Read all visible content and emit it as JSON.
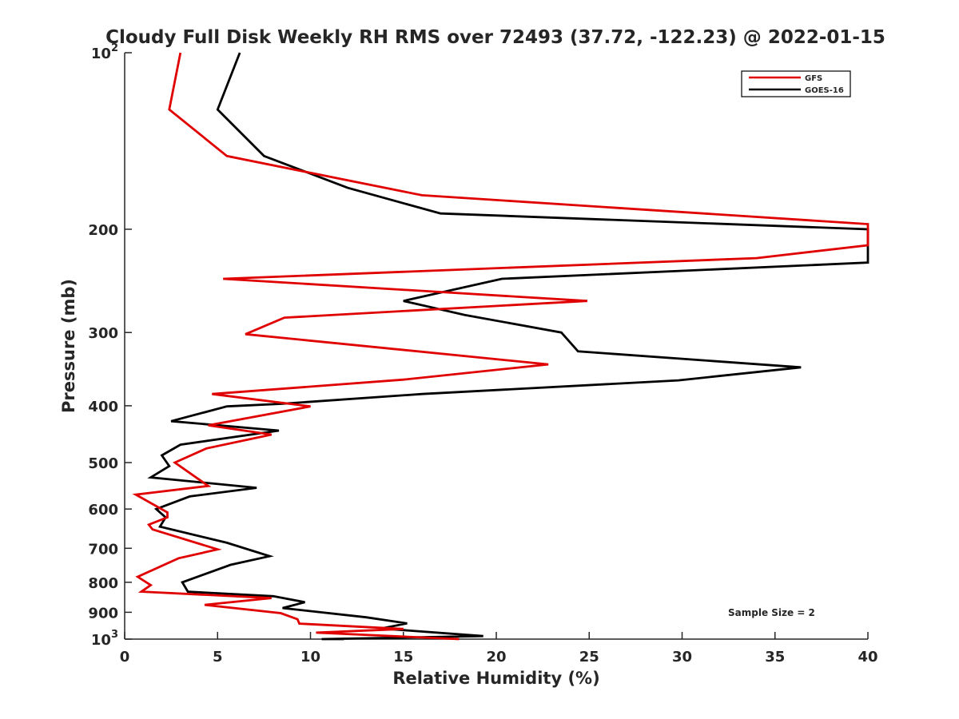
{
  "chart_data": {
    "type": "line",
    "title": "Cloudy Full Disk Weekly RH RMS over 72493 (37.72, -122.23) @ 2022-01-15",
    "xlabel": "Relative Humidity (%)",
    "ylabel": "Pressure (mb)",
    "xlim": [
      0,
      40
    ],
    "ylim": [
      100,
      1000
    ],
    "yscale": "log",
    "y_reversed": true,
    "grid": false,
    "legend_position": "top-right",
    "x_ticks": [
      0,
      5,
      10,
      15,
      20,
      25,
      30,
      35,
      40
    ],
    "y_ticks": [
      {
        "value": 100,
        "base": "10",
        "exp": "2"
      },
      {
        "value": 200,
        "label": "200"
      },
      {
        "value": 300,
        "label": "300"
      },
      {
        "value": 400,
        "label": "400"
      },
      {
        "value": 500,
        "label": "500"
      },
      {
        "value": 600,
        "label": "600"
      },
      {
        "value": 700,
        "label": "700"
      },
      {
        "value": 800,
        "label": "800"
      },
      {
        "value": 900,
        "label": "900"
      },
      {
        "value": 1000,
        "base": "10",
        "exp": "3"
      }
    ],
    "annotation": "Sample Size = 2",
    "series": [
      {
        "name": "GFS",
        "color": "#e00000",
        "points": [
          [
            3.0,
            100
          ],
          [
            2.4,
            125
          ],
          [
            5.5,
            150
          ],
          [
            16.0,
            175
          ],
          [
            40.0,
            196
          ],
          [
            40.0,
            213
          ],
          [
            34.0,
            224
          ],
          [
            5.3,
            243
          ],
          [
            24.9,
            265
          ],
          [
            8.6,
            283
          ],
          [
            6.5,
            302
          ],
          [
            22.8,
            340
          ],
          [
            15.0,
            361
          ],
          [
            4.7,
            382
          ],
          [
            10.0,
            401
          ],
          [
            4.5,
            432
          ],
          [
            7.9,
            448
          ],
          [
            4.4,
            473
          ],
          [
            2.7,
            500
          ],
          [
            4.5,
            548
          ],
          [
            0.6,
            567
          ],
          [
            2.3,
            608
          ],
          [
            2.3,
            620
          ],
          [
            1.3,
            638
          ],
          [
            1.5,
            650
          ],
          [
            5.0,
            703
          ],
          [
            2.9,
            728
          ],
          [
            0.7,
            783
          ],
          [
            1.4,
            809
          ],
          [
            0.9,
            830
          ],
          [
            7.9,
            851
          ],
          [
            4.3,
            874
          ],
          [
            8.4,
            903
          ],
          [
            9.3,
            925
          ],
          [
            9.4,
            941
          ],
          [
            15.0,
            961
          ],
          [
            10.3,
            975
          ],
          [
            18.0,
            1000
          ]
        ]
      },
      {
        "name": "GOES-16",
        "color": "#000000",
        "points": [
          [
            6.2,
            100
          ],
          [
            5.0,
            125
          ],
          [
            7.5,
            150
          ],
          [
            12.0,
            170
          ],
          [
            17.0,
            188
          ],
          [
            40.0,
            200
          ],
          [
            40.0,
            228
          ],
          [
            20.3,
            243
          ],
          [
            15.0,
            265
          ],
          [
            18.3,
            280
          ],
          [
            23.5,
            300
          ],
          [
            24.4,
            323
          ],
          [
            36.4,
            344
          ],
          [
            29.8,
            362
          ],
          [
            16.0,
            382
          ],
          [
            8.4,
            397
          ],
          [
            5.5,
            401
          ],
          [
            2.5,
            425
          ],
          [
            8.3,
            441
          ],
          [
            3.0,
            466
          ],
          [
            2.0,
            486
          ],
          [
            2.4,
            507
          ],
          [
            1.4,
            530
          ],
          [
            7.1,
            552
          ],
          [
            3.5,
            571
          ],
          [
            1.7,
            600
          ],
          [
            2.2,
            620
          ],
          [
            1.9,
            643
          ],
          [
            5.5,
            685
          ],
          [
            7.8,
            722
          ],
          [
            5.7,
            747
          ],
          [
            3.1,
            800
          ],
          [
            3.4,
            830
          ],
          [
            8.0,
            845
          ],
          [
            9.7,
            865
          ],
          [
            8.5,
            885
          ],
          [
            13.0,
            918
          ],
          [
            15.2,
            940
          ],
          [
            13.8,
            959
          ],
          [
            19.3,
            988
          ],
          [
            10.6,
            1000
          ],
          [
            11.8,
            1000
          ]
        ]
      }
    ]
  }
}
